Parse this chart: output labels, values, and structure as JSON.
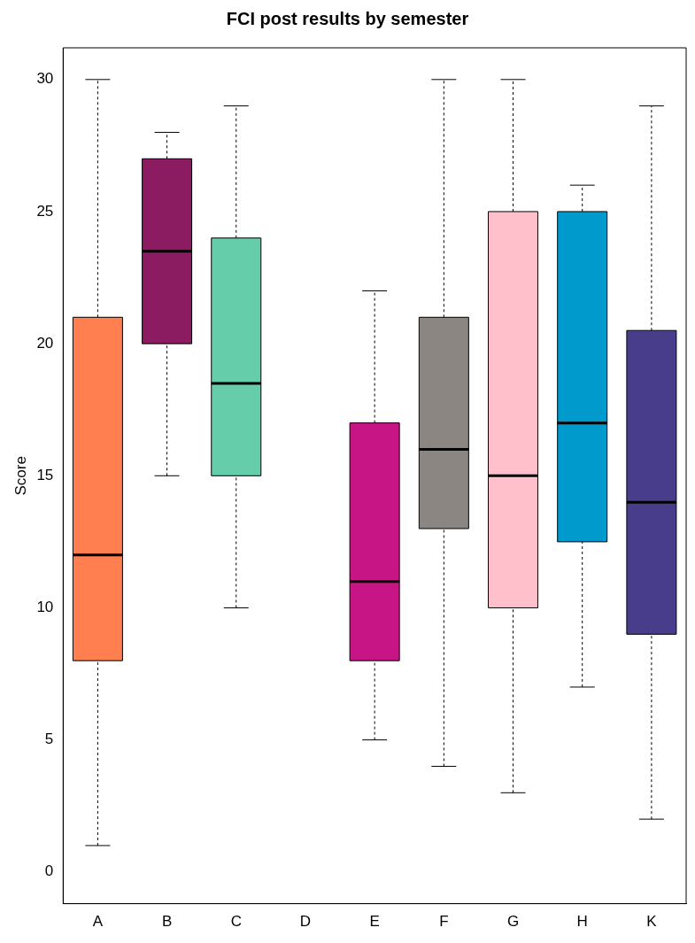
{
  "chart_data": {
    "type": "box",
    "title": "FCI post results by semester",
    "ylabel": "Score",
    "categories": [
      "A",
      "B",
      "C",
      "D",
      "E",
      "F",
      "G",
      "H",
      "K"
    ],
    "colors": [
      "#ff7f50",
      "#8b1c62",
      "#66cdaa",
      null,
      "#c71585",
      "#8b8682",
      "#ffc0cb",
      "#009acd",
      "#483d8b"
    ],
    "boxes": [
      {
        "low": 1,
        "q1": 8,
        "median": 12,
        "q3": 21,
        "high": 30
      },
      {
        "low": 15,
        "q1": 20,
        "median": 23.5,
        "q3": 27,
        "high": 28
      },
      {
        "low": 10,
        "q1": 15,
        "median": 18.5,
        "q3": 24,
        "high": 29
      },
      null,
      {
        "low": 5,
        "q1": 8,
        "median": 11,
        "q3": 17,
        "high": 22
      },
      {
        "low": 4,
        "q1": 13,
        "median": 16,
        "q3": 21,
        "high": 30
      },
      {
        "low": 3,
        "q1": 10,
        "median": 15,
        "q3": 25,
        "high": 30
      },
      {
        "low": 7,
        "q1": 12.5,
        "median": 17,
        "q3": 25,
        "high": 26
      },
      {
        "low": 2,
        "q1": 9,
        "median": 14,
        "q3": 20.5,
        "high": 29
      }
    ],
    "ylim": [
      -1.2,
      31.2
    ],
    "yticks": [
      0,
      5,
      10,
      15,
      20,
      25,
      30
    ],
    "grid": false,
    "legend": false
  }
}
